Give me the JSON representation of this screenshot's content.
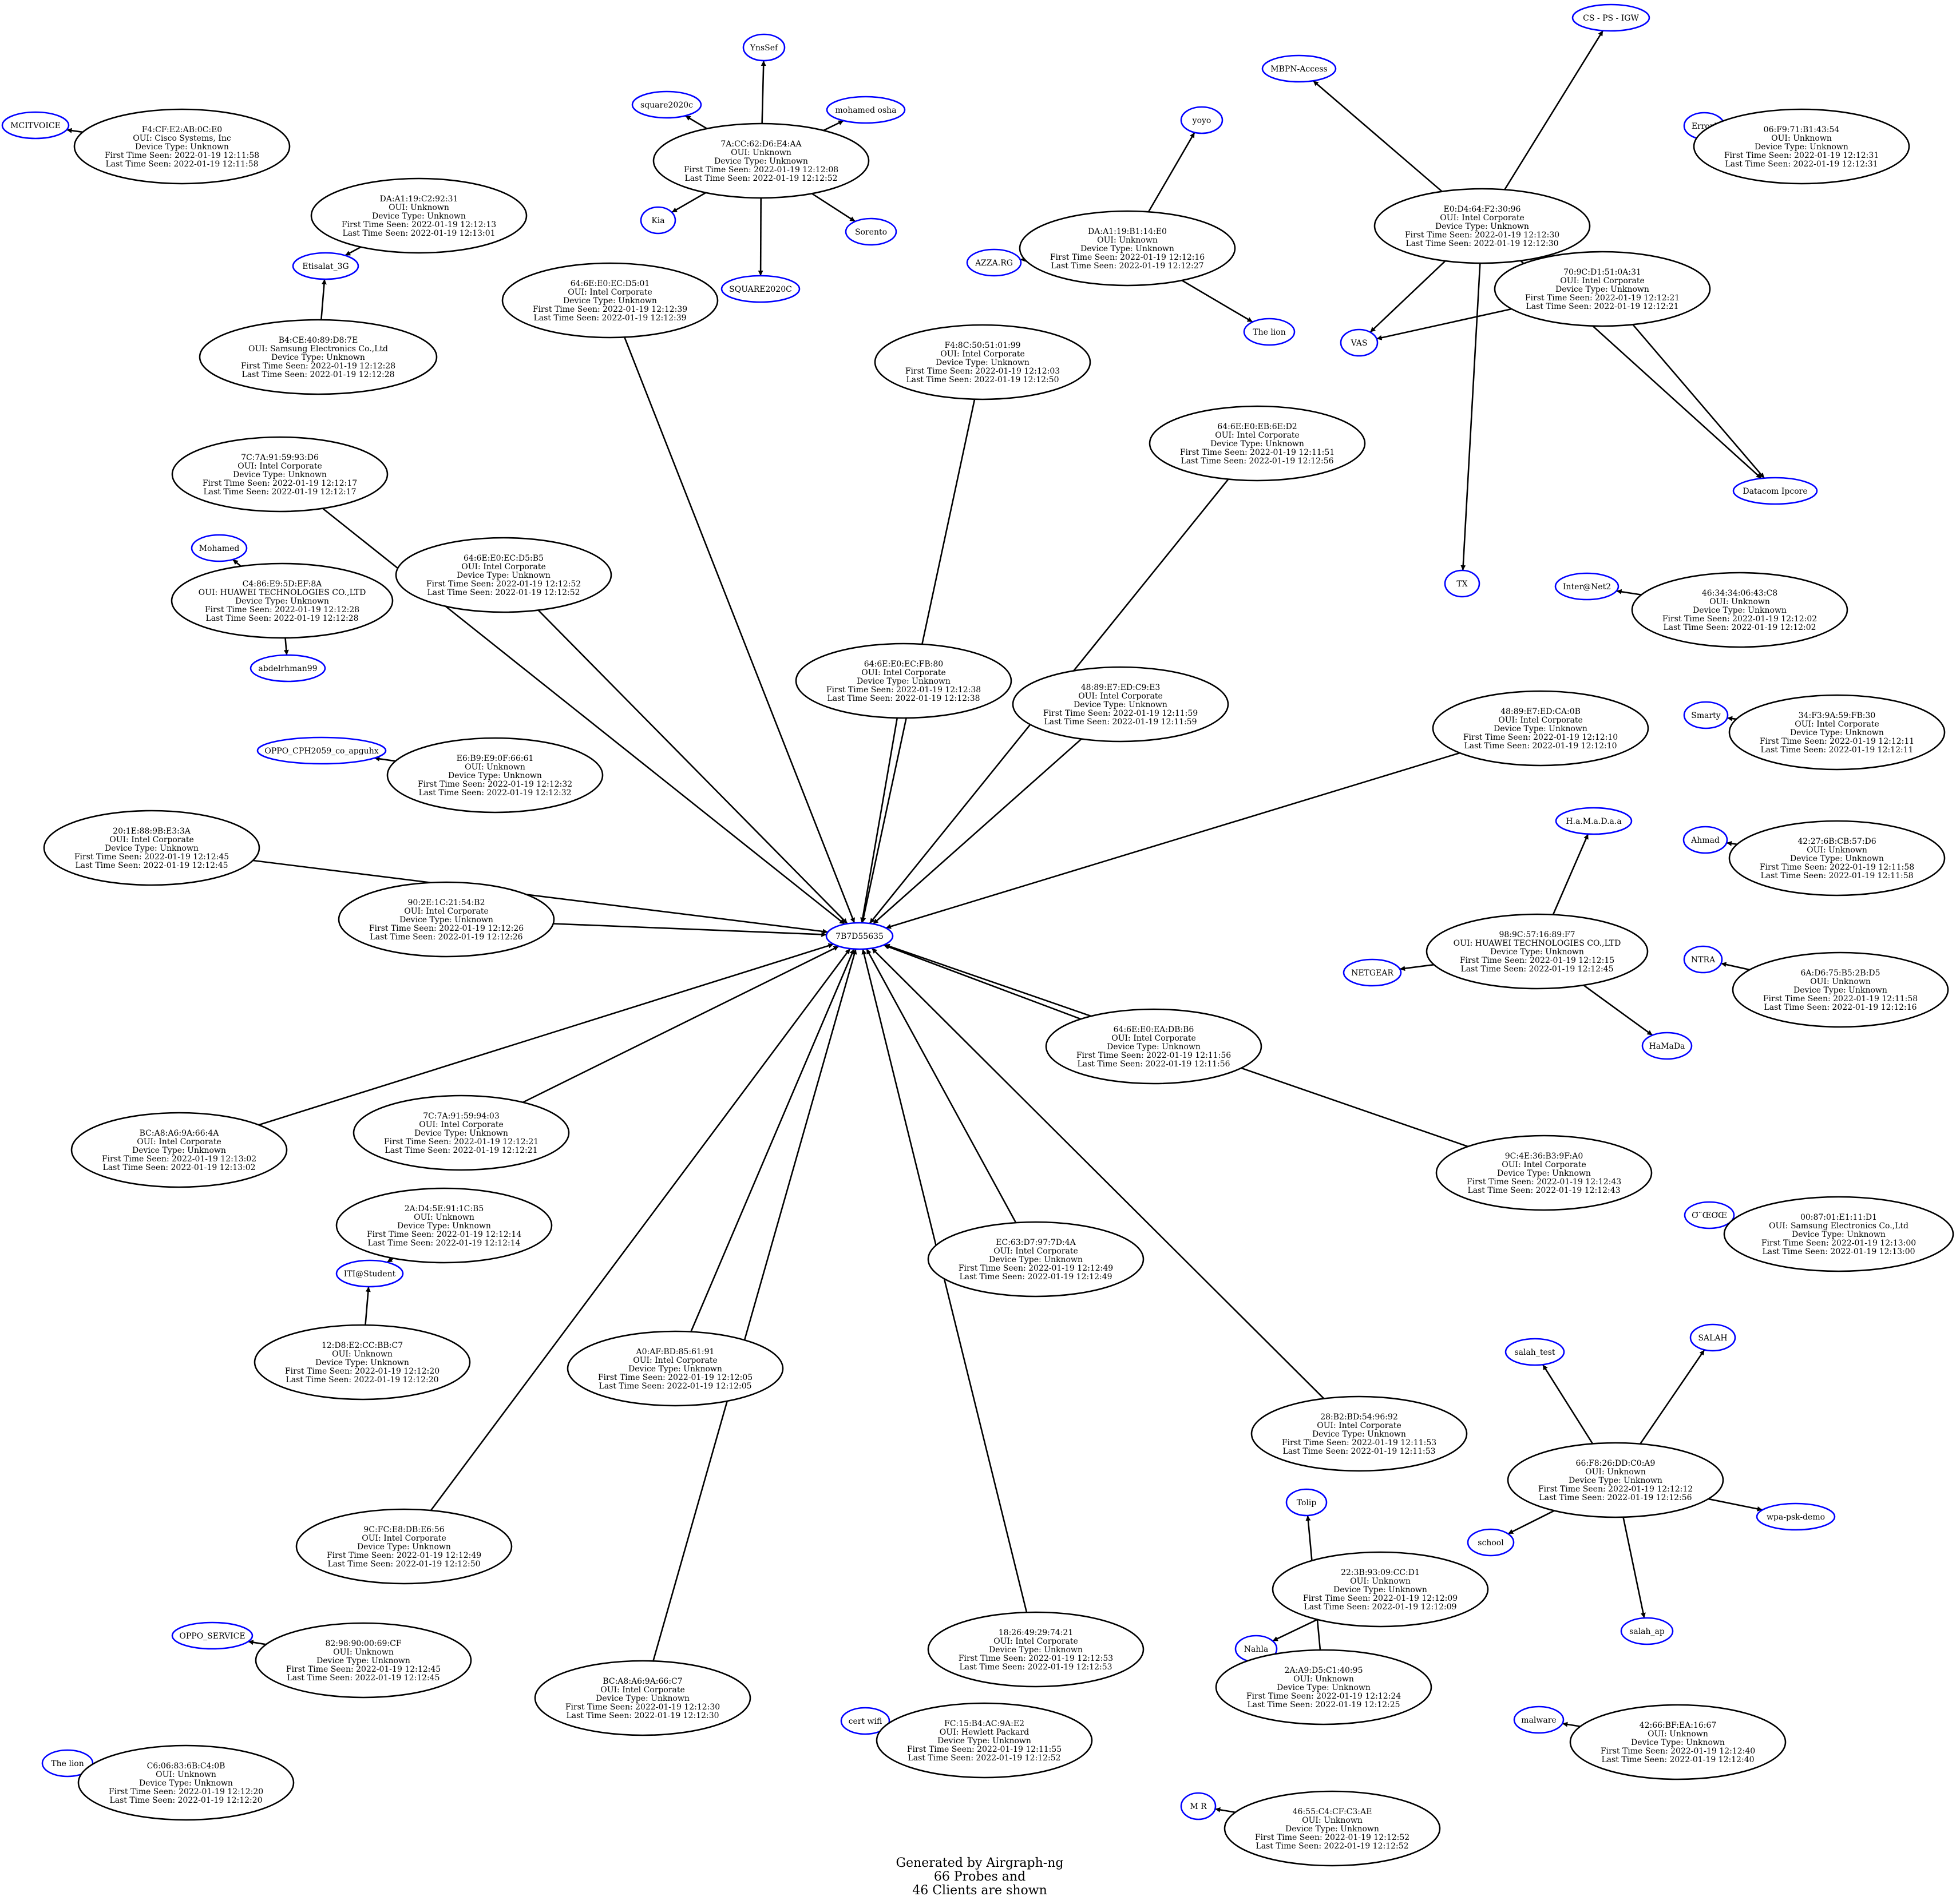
{
  "graph": {
    "edge_color": "#000000",
    "client_border_color": "#000000",
    "probe_border_color": "#0000ff",
    "footer": [
      "Generated by Airgraph-ng",
      "66 Probes and",
      "46 Clients are shown"
    ]
  },
  "probes": [
    {
      "id": "MCITVOICE",
      "label": "MCITVOICE"
    },
    {
      "id": "YnsSef",
      "label": "YnsSef"
    },
    {
      "id": "square2020c",
      "label": "square2020c"
    },
    {
      "id": "mohamed osha",
      "label": "mohamed osha"
    },
    {
      "id": "Kia",
      "label": "Kia"
    },
    {
      "id": "Sorento",
      "label": "Sorento"
    },
    {
      "id": "SQUARE2020C",
      "label": "SQUARE2020C"
    },
    {
      "id": "Etisalat_3G",
      "label": "Etisalat_3G"
    },
    {
      "id": "yoyo",
      "label": "yoyo"
    },
    {
      "id": "AZZA.RG",
      "label": "AZZA.RG"
    },
    {
      "id": "The lion top",
      "label": "The lion"
    },
    {
      "id": "MBPN-Access",
      "label": "MBPN-Access"
    },
    {
      "id": "CS - PS - IGW",
      "label": "CS - PS - IGW"
    },
    {
      "id": "Error!",
      "label": "Error!"
    },
    {
      "id": "VAS",
      "label": "VAS"
    },
    {
      "id": "Datacom Ipcore",
      "label": "Datacom Ipcore"
    },
    {
      "id": "TX",
      "label": "TX"
    },
    {
      "id": "Mohamed",
      "label": "Mohamed"
    },
    {
      "id": "abdelrhman99",
      "label": "abdelrhman99"
    },
    {
      "id": "Inter@Net2",
      "label": "Inter@Net2"
    },
    {
      "id": "Smarty",
      "label": "Smarty"
    },
    {
      "id": "OPPO_CPH2059_co_apguhx",
      "label": "OPPO_CPH2059_co_apguhx"
    },
    {
      "id": "H.a.M.a.D.a.a",
      "label": "H.a.M.a.D.a.a"
    },
    {
      "id": "Ahmad",
      "label": "Ahmad"
    },
    {
      "id": "7B7D55635",
      "label": "7B7D55635"
    },
    {
      "id": "NETGEAR",
      "label": "NETGEAR"
    },
    {
      "id": "NTRA",
      "label": "NTRA"
    },
    {
      "id": "HaMaDa",
      "label": "HaMaDa"
    },
    {
      "id": "odd",
      "label": "Ơ¨ŒƠŒ"
    },
    {
      "id": "ITI@Student",
      "label": "ITI@Student"
    },
    {
      "id": "salah_test",
      "label": "salah_test"
    },
    {
      "id": "SALAH",
      "label": "SALAH"
    },
    {
      "id": "school",
      "label": "school"
    },
    {
      "id": "wpa-psk-demo",
      "label": "wpa-psk-demo"
    },
    {
      "id": "Tolip",
      "label": "Tolip"
    },
    {
      "id": "OPPO_SERVICE",
      "label": "OPPO_SERVICE"
    },
    {
      "id": "salah_ap",
      "label": "salah_ap"
    },
    {
      "id": "Nahla",
      "label": "Nahla"
    },
    {
      "id": "cert wifi",
      "label": "cert wifi"
    },
    {
      "id": "malware",
      "label": "malware"
    },
    {
      "id": "The lion bottom",
      "label": "The lion"
    },
    {
      "id": "M R",
      "label": "M R"
    }
  ],
  "clients": [
    {
      "id": "F4:CF:E2:AB:0C:E0",
      "lines": [
        "F4:CF:E2:AB:0C:E0",
        "OUI: Cisco Systems, Inc",
        "Device Type: Unknown",
        "First Time Seen:  2022-01-19 12:11:58",
        "Last Time Seen:  2022-01-19 12:11:58"
      ]
    },
    {
      "id": "7A:CC:62:D6:E4:AA",
      "lines": [
        "7A:CC:62:D6:E4:AA",
        "OUI: Unknown",
        "Device Type: Unknown",
        "First Time Seen:  2022-01-19 12:12:08",
        "Last Time Seen:  2022-01-19 12:12:52"
      ]
    },
    {
      "id": "DA:A1:19:C2:92:31",
      "lines": [
        "DA:A1:19:C2:92:31",
        "OUI: Unknown",
        "Device Type: Unknown",
        "First Time Seen:  2022-01-19 12:12:13",
        "Last Time Seen:  2022-01-19 12:13:01"
      ]
    },
    {
      "id": "B4:CE:40:89:D8:7E",
      "lines": [
        "B4:CE:40:89:D8:7E",
        "OUI: Samsung Electronics Co.,Ltd",
        "Device Type: Unknown",
        "First Time Seen:  2022-01-19 12:12:28",
        "Last Time Seen:  2022-01-19 12:12:28"
      ]
    },
    {
      "id": "DA:A1:19:B1:14:E0",
      "lines": [
        "DA:A1:19:B1:14:E0",
        "OUI: Unknown",
        "Device Type: Unknown",
        "First Time Seen:  2022-01-19 12:12:16",
        "Last Time Seen:  2022-01-19 12:12:27"
      ]
    },
    {
      "id": "E0:D4:64:F2:30:96",
      "lines": [
        "E0:D4:64:F2:30:96",
        "OUI: Intel Corporate",
        "Device Type: Unknown",
        "First Time Seen:  2022-01-19 12:12:30",
        "Last Time Seen:  2022-01-19 12:12:30"
      ]
    },
    {
      "id": "06:F9:71:B1:43:54",
      "lines": [
        "06:F9:71:B1:43:54",
        "OUI: Unknown",
        "Device Type: Unknown",
        "First Time Seen:  2022-01-19 12:12:31",
        "Last Time Seen:  2022-01-19 12:12:31"
      ]
    },
    {
      "id": "64:6E:E0:EC:D5:01",
      "lines": [
        "64:6E:E0:EC:D5:01",
        "OUI: Intel Corporate",
        "Device Type: Unknown",
        "First Time Seen:  2022-01-19 12:12:39",
        "Last Time Seen:  2022-01-19 12:12:39"
      ]
    },
    {
      "id": "70:9C:D1:51:0A:31",
      "lines": [
        "70:9C:D1:51:0A:31",
        "OUI: Intel Corporate",
        "Device Type: Unknown",
        "First Time Seen:  2022-01-19 12:12:21",
        "Last Time Seen:  2022-01-19 12:12:21"
      ]
    },
    {
      "id": "F4:8C:50:51:01:99",
      "lines": [
        "F4:8C:50:51:01:99",
        "OUI: Intel Corporate",
        "Device Type: Unknown",
        "First Time Seen:  2022-01-19 12:12:03",
        "Last Time Seen:  2022-01-19 12:12:50"
      ]
    },
    {
      "id": "64:6E:E0:EB:6E:D2",
      "lines": [
        "64:6E:E0:EB:6E:D2",
        "OUI: Intel Corporate",
        "Device Type: Unknown",
        "First Time Seen:  2022-01-19 12:11:51",
        "Last Time Seen:  2022-01-19 12:12:56"
      ]
    },
    {
      "id": "7C:7A:91:59:93:D6",
      "lines": [
        "7C:7A:91:59:93:D6",
        "OUI: Intel Corporate",
        "Device Type: Unknown",
        "First Time Seen:  2022-01-19 12:12:17",
        "Last Time Seen:  2022-01-19 12:12:17"
      ]
    },
    {
      "id": "64:6E:E0:EC:D5:B5",
      "lines": [
        "64:6E:E0:EC:D5:B5",
        "OUI: Intel Corporate",
        "Device Type: Unknown",
        "First Time Seen:  2022-01-19 12:12:52",
        "Last Time Seen:  2022-01-19 12:12:52"
      ]
    },
    {
      "id": "C4:86:E9:5D:EF:8A",
      "lines": [
        "C4:86:E9:5D:EF:8A",
        "OUI: HUAWEI TECHNOLOGIES CO.,LTD",
        "Device Type: Unknown",
        "First Time Seen:  2022-01-19 12:12:28",
        "Last Time Seen:  2022-01-19 12:12:28"
      ]
    },
    {
      "id": "46:34:34:06:43:C8",
      "lines": [
        "46:34:34:06:43:C8",
        "OUI: Unknown",
        "Device Type: Unknown",
        "First Time Seen:  2022-01-19 12:12:02",
        "Last Time Seen:  2022-01-19 12:12:02"
      ]
    },
    {
      "id": "64:6E:E0:EC:FB:80",
      "lines": [
        "64:6E:E0:EC:FB:80",
        "OUI: Intel Corporate",
        "Device Type: Unknown",
        "First Time Seen:  2022-01-19 12:12:38",
        "Last Time Seen:  2022-01-19 12:12:38"
      ]
    },
    {
      "id": "48:89:E7:ED:C9:E3",
      "lines": [
        "48:89:E7:ED:C9:E3",
        "OUI: Intel Corporate",
        "Device Type: Unknown",
        "First Time Seen:  2022-01-19 12:11:59",
        "Last Time Seen:  2022-01-19 12:11:59"
      ]
    },
    {
      "id": "48:89:E7:ED:CA:0B",
      "lines": [
        "48:89:E7:ED:CA:0B",
        "OUI: Intel Corporate",
        "Device Type: Unknown",
        "First Time Seen:  2022-01-19 12:12:10",
        "Last Time Seen:  2022-01-19 12:12:10"
      ]
    },
    {
      "id": "34:F3:9A:59:FB:30",
      "lines": [
        "34:F3:9A:59:FB:30",
        "OUI: Intel Corporate",
        "Device Type: Unknown",
        "First Time Seen:  2022-01-19 12:12:11",
        "Last Time Seen:  2022-01-19 12:12:11"
      ]
    },
    {
      "id": "E6:B9:E9:0F:66:61",
      "lines": [
        "E6:B9:E9:0F:66:61",
        "OUI: Unknown",
        "Device Type: Unknown",
        "First Time Seen:  2022-01-19 12:12:32",
        "Last Time Seen:  2022-01-19 12:12:32"
      ]
    },
    {
      "id": "20:1E:88:9B:E3:3A",
      "lines": [
        "20:1E:88:9B:E3:3A",
        "OUI: Intel Corporate",
        "Device Type: Unknown",
        "First Time Seen:  2022-01-19 12:12:45",
        "Last Time Seen:  2022-01-19 12:12:45"
      ]
    },
    {
      "id": "42:27:6B:CB:57:D6",
      "lines": [
        "42:27:6B:CB:57:D6",
        "OUI: Unknown",
        "Device Type: Unknown",
        "First Time Seen:  2022-01-19 12:11:58",
        "Last Time Seen:  2022-01-19 12:11:58"
      ]
    },
    {
      "id": "90:2E:1C:21:54:B2",
      "lines": [
        "90:2E:1C:21:54:B2",
        "OUI: Intel Corporate",
        "Device Type: Unknown",
        "First Time Seen:  2022-01-19 12:12:26",
        "Last Time Seen:  2022-01-19 12:12:26"
      ]
    },
    {
      "id": "98:9C:57:16:89:F7",
      "lines": [
        "98:9C:57:16:89:F7",
        "OUI: HUAWEI TECHNOLOGIES CO.,LTD",
        "Device Type: Unknown",
        "First Time Seen:  2022-01-19 12:12:15",
        "Last Time Seen:  2022-01-19 12:12:45"
      ]
    },
    {
      "id": "6A:D6:75:B5:2B:D5",
      "lines": [
        "6A:D6:75:B5:2B:D5",
        "OUI: Unknown",
        "Device Type: Unknown",
        "First Time Seen:  2022-01-19 12:11:58",
        "Last Time Seen:  2022-01-19 12:12:16"
      ]
    },
    {
      "id": "64:6E:E0:EA:DB:B6",
      "lines": [
        "64:6E:E0:EA:DB:B6",
        "OUI: Intel Corporate",
        "Device Type: Unknown",
        "First Time Seen:  2022-01-19 12:11:56",
        "Last Time Seen:  2022-01-19 12:11:56"
      ]
    },
    {
      "id": "BC:A8:A6:9A:66:4A",
      "lines": [
        "BC:A8:A6:9A:66:4A",
        "OUI: Intel Corporate",
        "Device Type: Unknown",
        "First Time Seen:  2022-01-19 12:13:02",
        "Last Time Seen:  2022-01-19 12:13:02"
      ]
    },
    {
      "id": "7C:7A:91:59:94:03",
      "lines": [
        "7C:7A:91:59:94:03",
        "OUI: Intel Corporate",
        "Device Type: Unknown",
        "First Time Seen:  2022-01-19 12:12:21",
        "Last Time Seen:  2022-01-19 12:12:21"
      ]
    },
    {
      "id": "9C:4E:36:B3:9F:A0",
      "lines": [
        "9C:4E:36:B3:9F:A0",
        "OUI: Intel Corporate",
        "Device Type: Unknown",
        "First Time Seen:  2022-01-19 12:12:43",
        "Last Time Seen:  2022-01-19 12:12:43"
      ]
    },
    {
      "id": "2A:D4:5E:91:1C:B5",
      "lines": [
        "2A:D4:5E:91:1C:B5",
        "OUI: Unknown",
        "Device Type: Unknown",
        "First Time Seen:  2022-01-19 12:12:14",
        "Last Time Seen:  2022-01-19 12:12:14"
      ]
    },
    {
      "id": "00:87:01:E1:11:D1",
      "lines": [
        "00:87:01:E1:11:D1",
        "OUI: Samsung Electronics Co.,Ltd",
        "Device Type: Unknown",
        "First Time Seen:  2022-01-19 12:13:00",
        "Last Time Seen:  2022-01-19 12:13:00"
      ]
    },
    {
      "id": "EC:63:D7:97:7D:4A",
      "lines": [
        "EC:63:D7:97:7D:4A",
        "OUI: Intel Corporate",
        "Device Type: Unknown",
        "First Time Seen:  2022-01-19 12:12:49",
        "Last Time Seen:  2022-01-19 12:12:49"
      ]
    },
    {
      "id": "12:D8:E2:CC:BB:C7",
      "lines": [
        "12:D8:E2:CC:BB:C7",
        "OUI: Unknown",
        "Device Type: Unknown",
        "First Time Seen:  2022-01-19 12:12:20",
        "Last Time Seen:  2022-01-19 12:12:20"
      ]
    },
    {
      "id": "A0:AF:BD:85:61:91",
      "lines": [
        "A0:AF:BD:85:61:91",
        "OUI: Intel Corporate",
        "Device Type: Unknown",
        "First Time Seen:  2022-01-19 12:12:05",
        "Last Time Seen:  2022-01-19 12:12:05"
      ]
    },
    {
      "id": "28:B2:BD:54:96:92",
      "lines": [
        "28:B2:BD:54:96:92",
        "OUI: Intel Corporate",
        "Device Type: Unknown",
        "First Time Seen:  2022-01-19 12:11:53",
        "Last Time Seen:  2022-01-19 12:11:53"
      ]
    },
    {
      "id": "66:F8:26:DD:C0:A9",
      "lines": [
        "66:F8:26:DD:C0:A9",
        "OUI: Unknown",
        "Device Type: Unknown",
        "First Time Seen:  2022-01-19 12:12:12",
        "Last Time Seen:  2022-01-19 12:12:56"
      ]
    },
    {
      "id": "9C:FC:E8:DB:E6:56",
      "lines": [
        "9C:FC:E8:DB:E6:56",
        "OUI: Intel Corporate",
        "Device Type: Unknown",
        "First Time Seen:  2022-01-19 12:12:49",
        "Last Time Seen:  2022-01-19 12:12:50"
      ]
    },
    {
      "id": "22:3B:93:09:CC:D1",
      "lines": [
        "22:3B:93:09:CC:D1",
        "OUI: Unknown",
        "Device Type: Unknown",
        "First Time Seen:  2022-01-19 12:12:09",
        "Last Time Seen:  2022-01-19 12:12:09"
      ]
    },
    {
      "id": "82:98:90:00:69:CF",
      "lines": [
        "82:98:90:00:69:CF",
        "OUI: Unknown",
        "Device Type: Unknown",
        "First Time Seen:  2022-01-19 12:12:45",
        "Last Time Seen:  2022-01-19 12:12:45"
      ]
    },
    {
      "id": "18:26:49:29:74:21",
      "lines": [
        "18:26:49:29:74:21",
        "OUI: Intel Corporate",
        "Device Type: Unknown",
        "First Time Seen:  2022-01-19 12:12:53",
        "Last Time Seen:  2022-01-19 12:12:53"
      ]
    },
    {
      "id": "2A:A9:D5:C1:40:95",
      "lines": [
        "2A:A9:D5:C1:40:95",
        "OUI: Unknown",
        "Device Type: Unknown",
        "First Time Seen:  2022-01-19 12:12:24",
        "Last Time Seen:  2022-01-19 12:12:25"
      ]
    },
    {
      "id": "BC:A8:A6:9A:66:C7",
      "lines": [
        "BC:A8:A6:9A:66:C7",
        "OUI: Intel Corporate",
        "Device Type: Unknown",
        "First Time Seen:  2022-01-19 12:12:30",
        "Last Time Seen:  2022-01-19 12:12:30"
      ]
    },
    {
      "id": "FC:15:B4:AC:9A:E2",
      "lines": [
        "FC:15:B4:AC:9A:E2",
        "OUI: Hewlett Packard",
        "Device Type: Unknown",
        "First Time Seen:  2022-01-19 12:11:55",
        "Last Time Seen:  2022-01-19 12:12:52"
      ]
    },
    {
      "id": "42:66:BF:EA:16:67",
      "lines": [
        "42:66:BF:EA:16:67",
        "OUI: Unknown",
        "Device Type: Unknown",
        "First Time Seen:  2022-01-19 12:12:40",
        "Last Time Seen:  2022-01-19 12:12:40"
      ]
    },
    {
      "id": "C6:06:83:6B:C4:0B",
      "lines": [
        "C6:06:83:6B:C4:0B",
        "OUI: Unknown",
        "Device Type: Unknown",
        "First Time Seen:  2022-01-19 12:12:20",
        "Last Time Seen:  2022-01-19 12:12:20"
      ]
    },
    {
      "id": "46:55:C4:CF:C3:AE",
      "lines": [
        "46:55:C4:CF:C3:AE",
        "OUI: Unknown",
        "Device Type: Unknown",
        "First Time Seen:  2022-01-19 12:12:52",
        "Last Time Seen:  2022-01-19 12:12:52"
      ]
    }
  ],
  "edges": [
    {
      "from": "F4:CF:E2:AB:0C:E0",
      "to": "MCITVOICE"
    },
    {
      "from": "7A:CC:62:D6:E4:AA",
      "to": "YnsSef"
    },
    {
      "from": "7A:CC:62:D6:E4:AA",
      "to": "square2020c"
    },
    {
      "from": "7A:CC:62:D6:E4:AA",
      "to": "mohamed osha"
    },
    {
      "from": "7A:CC:62:D6:E4:AA",
      "to": "Kia"
    },
    {
      "from": "7A:CC:62:D6:E4:AA",
      "to": "Sorento"
    },
    {
      "from": "7A:CC:62:D6:E4:AA",
      "to": "SQUARE2020C"
    },
    {
      "from": "DA:A1:19:C2:92:31",
      "to": "Etisalat_3G"
    },
    {
      "from": "B4:CE:40:89:D8:7E",
      "to": "Etisalat_3G"
    },
    {
      "from": "DA:A1:19:B1:14:E0",
      "to": "yoyo"
    },
    {
      "from": "DA:A1:19:B1:14:E0",
      "to": "AZZA.RG"
    },
    {
      "from": "DA:A1:19:B1:14:E0",
      "to": "The lion top"
    },
    {
      "from": "E0:D4:64:F2:30:96",
      "to": "MBPN-Access"
    },
    {
      "from": "E0:D4:64:F2:30:96",
      "to": "CS - PS - IGW"
    },
    {
      "from": "E0:D4:64:F2:30:96",
      "to": "VAS"
    },
    {
      "from": "E0:D4:64:F2:30:96",
      "to": "TX"
    },
    {
      "from": "E0:D4:64:F2:30:96",
      "to": "Datacom Ipcore"
    },
    {
      "from": "06:F9:71:B1:43:54",
      "to": "Error!"
    },
    {
      "from": "70:9C:D1:51:0A:31",
      "to": "VAS"
    },
    {
      "from": "70:9C:D1:51:0A:31",
      "to": "Datacom Ipcore"
    },
    {
      "from": "C4:86:E9:5D:EF:8A",
      "to": "Mohamed"
    },
    {
      "from": "C4:86:E9:5D:EF:8A",
      "to": "abdelrhman99"
    },
    {
      "from": "46:34:34:06:43:C8",
      "to": "Inter@Net2"
    },
    {
      "from": "34:F3:9A:59:FB:30",
      "to": "Smarty"
    },
    {
      "from": "E6:B9:E9:0F:66:61",
      "to": "OPPO_CPH2059_co_apguhx"
    },
    {
      "from": "98:9C:57:16:89:F7",
      "to": "H.a.M.a.D.a.a"
    },
    {
      "from": "98:9C:57:16:89:F7",
      "to": "NETGEAR"
    },
    {
      "from": "98:9C:57:16:89:F7",
      "to": "HaMaDa"
    },
    {
      "from": "42:27:6B:CB:57:D6",
      "to": "Ahmad"
    },
    {
      "from": "6A:D6:75:B5:2B:D5",
      "to": "NTRA"
    },
    {
      "from": "00:87:01:E1:11:D1",
      "to": "odd"
    },
    {
      "from": "2A:D4:5E:91:1C:B5",
      "to": "ITI@Student"
    },
    {
      "from": "12:D8:E2:CC:BB:C7",
      "to": "ITI@Student"
    },
    {
      "from": "66:F8:26:DD:C0:A9",
      "to": "salah_test"
    },
    {
      "from": "66:F8:26:DD:C0:A9",
      "to": "SALAH"
    },
    {
      "from": "66:F8:26:DD:C0:A9",
      "to": "school"
    },
    {
      "from": "66:F8:26:DD:C0:A9",
      "to": "wpa-psk-demo"
    },
    {
      "from": "66:F8:26:DD:C0:A9",
      "to": "salah_ap"
    },
    {
      "from": "2A:A9:D5:C1:40:95",
      "to": "Tolip"
    },
    {
      "from": "2A:A9:D5:C1:40:95",
      "to": "Nahla"
    },
    {
      "from": "22:3B:93:09:CC:D1",
      "to": "Nahla"
    },
    {
      "from": "82:98:90:00:69:CF",
      "to": "OPPO_SERVICE"
    },
    {
      "from": "FC:15:B4:AC:9A:E2",
      "to": "cert wifi"
    },
    {
      "from": "42:66:BF:EA:16:67",
      "to": "malware"
    },
    {
      "from": "C6:06:83:6B:C4:0B",
      "to": "The lion bottom"
    },
    {
      "from": "46:55:C4:CF:C3:AE",
      "to": "M R"
    },
    {
      "from": "64:6E:E0:EC:D5:01",
      "to": "7B7D55635"
    },
    {
      "from": "F4:8C:50:51:01:99",
      "to": "7B7D55635"
    },
    {
      "from": "64:6E:E0:EB:6E:D2",
      "to": "7B7D55635"
    },
    {
      "from": "7C:7A:91:59:93:D6",
      "to": "7B7D55635"
    },
    {
      "from": "64:6E:E0:EC:D5:B5",
      "to": "7B7D55635"
    },
    {
      "from": "64:6E:E0:EC:FB:80",
      "to": "7B7D55635"
    },
    {
      "from": "48:89:E7:ED:C9:E3",
      "to": "7B7D55635"
    },
    {
      "from": "48:89:E7:ED:CA:0B",
      "to": "7B7D55635"
    },
    {
      "from": "20:1E:88:9B:E3:3A",
      "to": "7B7D55635"
    },
    {
      "from": "90:2E:1C:21:54:B2",
      "to": "7B7D55635"
    },
    {
      "from": "64:6E:E0:EA:DB:B6",
      "to": "7B7D55635"
    },
    {
      "from": "BC:A8:A6:9A:66:4A",
      "to": "7B7D55635"
    },
    {
      "from": "7C:7A:91:59:94:03",
      "to": "7B7D55635"
    },
    {
      "from": "9C:4E:36:B3:9F:A0",
      "to": "7B7D55635"
    },
    {
      "from": "EC:63:D7:97:7D:4A",
      "to": "7B7D55635"
    },
    {
      "from": "A0:AF:BD:85:61:91",
      "to": "7B7D55635"
    },
    {
      "from": "28:B2:BD:54:96:92",
      "to": "7B7D55635"
    },
    {
      "from": "9C:FC:E8:DB:E6:56",
      "to": "7B7D55635"
    },
    {
      "from": "18:26:49:29:74:21",
      "to": "7B7D55635"
    },
    {
      "from": "BC:A8:A6:9A:66:C7",
      "to": "7B7D55635"
    }
  ]
}
